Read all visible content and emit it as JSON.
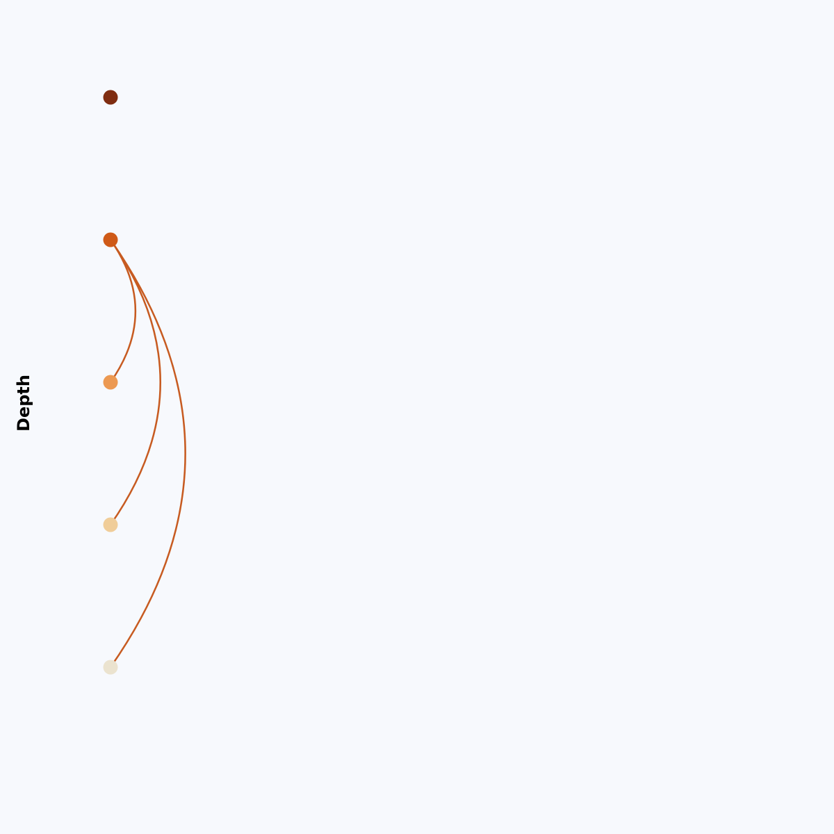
{
  "axis_label": "Depth",
  "colors": {
    "background": "#f7f9fd",
    "edge": "#c75b21"
  },
  "nodes": [
    {
      "id": "n1",
      "depth": 1,
      "color": "#7f2d11"
    },
    {
      "id": "n2",
      "depth": 2,
      "color": "#cf5a18"
    },
    {
      "id": "n3",
      "depth": 3,
      "color": "#ec9952"
    },
    {
      "id": "n4",
      "depth": 4,
      "color": "#f0cd99"
    },
    {
      "id": "n5",
      "depth": 5,
      "color": "#ebe3cf"
    }
  ],
  "edges": [
    {
      "source": "n2",
      "target": "n3"
    },
    {
      "source": "n2",
      "target": "n4"
    },
    {
      "source": "n2",
      "target": "n5"
    }
  ]
}
